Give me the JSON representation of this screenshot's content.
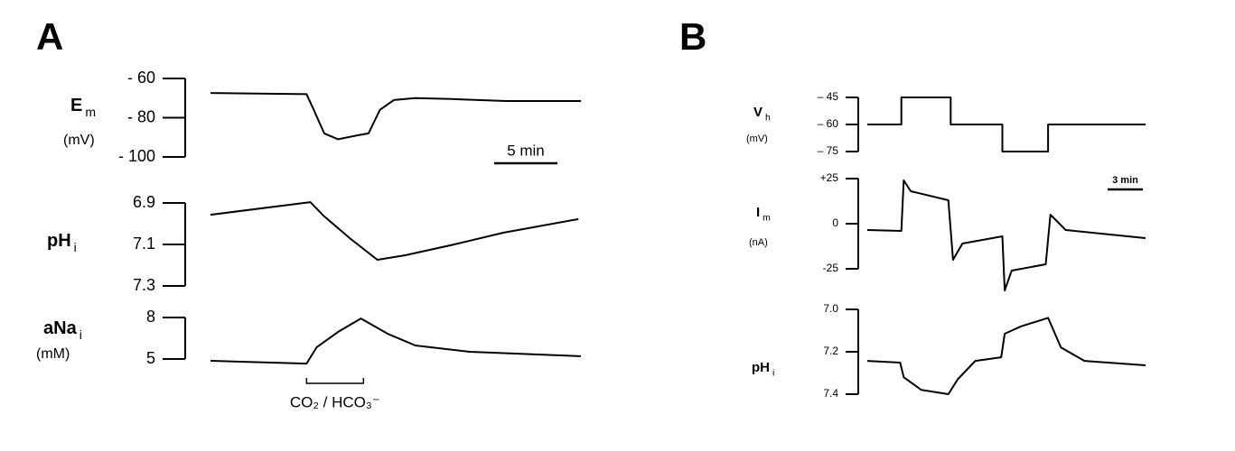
{
  "panel_labels": [
    "A",
    "B"
  ],
  "chart_data": [
    {
      "type": "line",
      "ylabel": "E",
      "ylabel_sub": "m",
      "unit": "(mV)",
      "xlim": [
        0,
        29.3
      ],
      "ylim": [
        -100,
        -60
      ],
      "yticks": [
        {
          "value": -60,
          "label": "- 60"
        },
        {
          "value": -80,
          "label": "- 80"
        },
        {
          "value": -100,
          "label": "- 100"
        }
      ],
      "x": [
        0,
        7.6,
        8.1,
        9,
        10.1,
        11.6,
        12.5,
        13.4,
        14.5,
        16.2,
        19.1,
        23.4,
        29.3
      ],
      "values": [
        -67.4,
        -68,
        -75,
        -88,
        -91,
        -89,
        -88,
        -76,
        -71,
        -70,
        -70.5,
        -71.5,
        -71.5
      ],
      "color": "#000000",
      "scale_bar": {
        "label": "5 min",
        "value": 5
      }
    },
    {
      "type": "line",
      "ylabel": "pH",
      "ylabel_sub": "i",
      "xlim": [
        0,
        29.3
      ],
      "ylim": [
        7.3,
        6.9
      ],
      "yticks": [
        6.9,
        7.1,
        7.3
      ],
      "x": [
        0,
        7.9,
        9,
        11.1,
        13.2,
        15.4,
        19,
        23.2,
        29.1
      ],
      "values": [
        6.957,
        6.896,
        6.965,
        7.074,
        7.174,
        7.152,
        7.104,
        7.043,
        6.978
      ],
      "color": "#000000"
    },
    {
      "type": "line",
      "ylabel": "aNa",
      "ylabel_sub": "i",
      "unit": "(mM)",
      "xlim": [
        0,
        29.3
      ],
      "ylim": [
        5,
        8
      ],
      "yticks": [
        8,
        5
      ],
      "x": [
        0,
        7.6,
        8.4,
        10.1,
        11.9,
        14,
        16.2,
        20.5,
        29.3
      ],
      "values": [
        4.87,
        4.67,
        5.85,
        6.96,
        7.93,
        6.83,
        5.98,
        5.52,
        5.2
      ],
      "color": "#000000",
      "annotation": {
        "text": "CO₂ / HCO₃⁻",
        "start": 7.6,
        "end": 12.1
      }
    },
    {
      "type": "line",
      "ylabel": "V",
      "ylabel_sub": "h",
      "unit": "(mV)",
      "xlim": [
        0,
        23.7
      ],
      "ylim": [
        -75,
        -45
      ],
      "yticks": [
        {
          "value": -45,
          "label": "– 45"
        },
        {
          "value": -60,
          "label": "– 60"
        },
        {
          "value": -75,
          "label": "– 75"
        }
      ],
      "x": [
        0,
        2.9,
        2.9,
        7.1,
        7.1,
        11.5,
        11.5,
        15.4,
        15.4,
        23.7
      ],
      "values": [
        -60,
        -60,
        -45,
        -45,
        -60,
        -60,
        -75,
        -75,
        -60,
        -60
      ],
      "color": "#000000"
    },
    {
      "type": "line",
      "ylabel": "I",
      "ylabel_sub": "m",
      "unit": "(nA)",
      "xlim": [
        0,
        23.7
      ],
      "ylim": [
        -25,
        25
      ],
      "yticks": [
        {
          "value": 25,
          "label": "+25"
        },
        0,
        -25
      ],
      "x": [
        0,
        2.9,
        3.1,
        3.7,
        6.9,
        7.3,
        8.1,
        11.5,
        11.7,
        12.3,
        15.2,
        15.6,
        16.9,
        23.7
      ],
      "values": [
        -3.5,
        -4,
        24,
        18,
        13,
        -20,
        -11,
        -7,
        -37,
        -26,
        -22.5,
        5,
        -3.5,
        -8
      ],
      "color": "#000000",
      "scale_bar": {
        "label": "3 min",
        "value": 3
      }
    },
    {
      "type": "line",
      "ylabel": "pH",
      "ylabel_sub": "i",
      "xlim": [
        0,
        23.7
      ],
      "ylim": [
        7.4,
        7.0
      ],
      "yticks": [
        {
          "value": 7,
          "label": "7.0"
        },
        7.2,
        7.4
      ],
      "x": [
        0,
        2.8,
        3.1,
        4.6,
        6.9,
        7.7,
        9.2,
        11.4,
        11.7,
        13.1,
        15.4,
        16.5,
        18.5,
        23.7
      ],
      "values": [
        7.243,
        7.251,
        7.32,
        7.38,
        7.4,
        7.33,
        7.243,
        7.226,
        7.115,
        7.08,
        7.04,
        7.18,
        7.243,
        7.264
      ],
      "color": "#000000"
    }
  ]
}
